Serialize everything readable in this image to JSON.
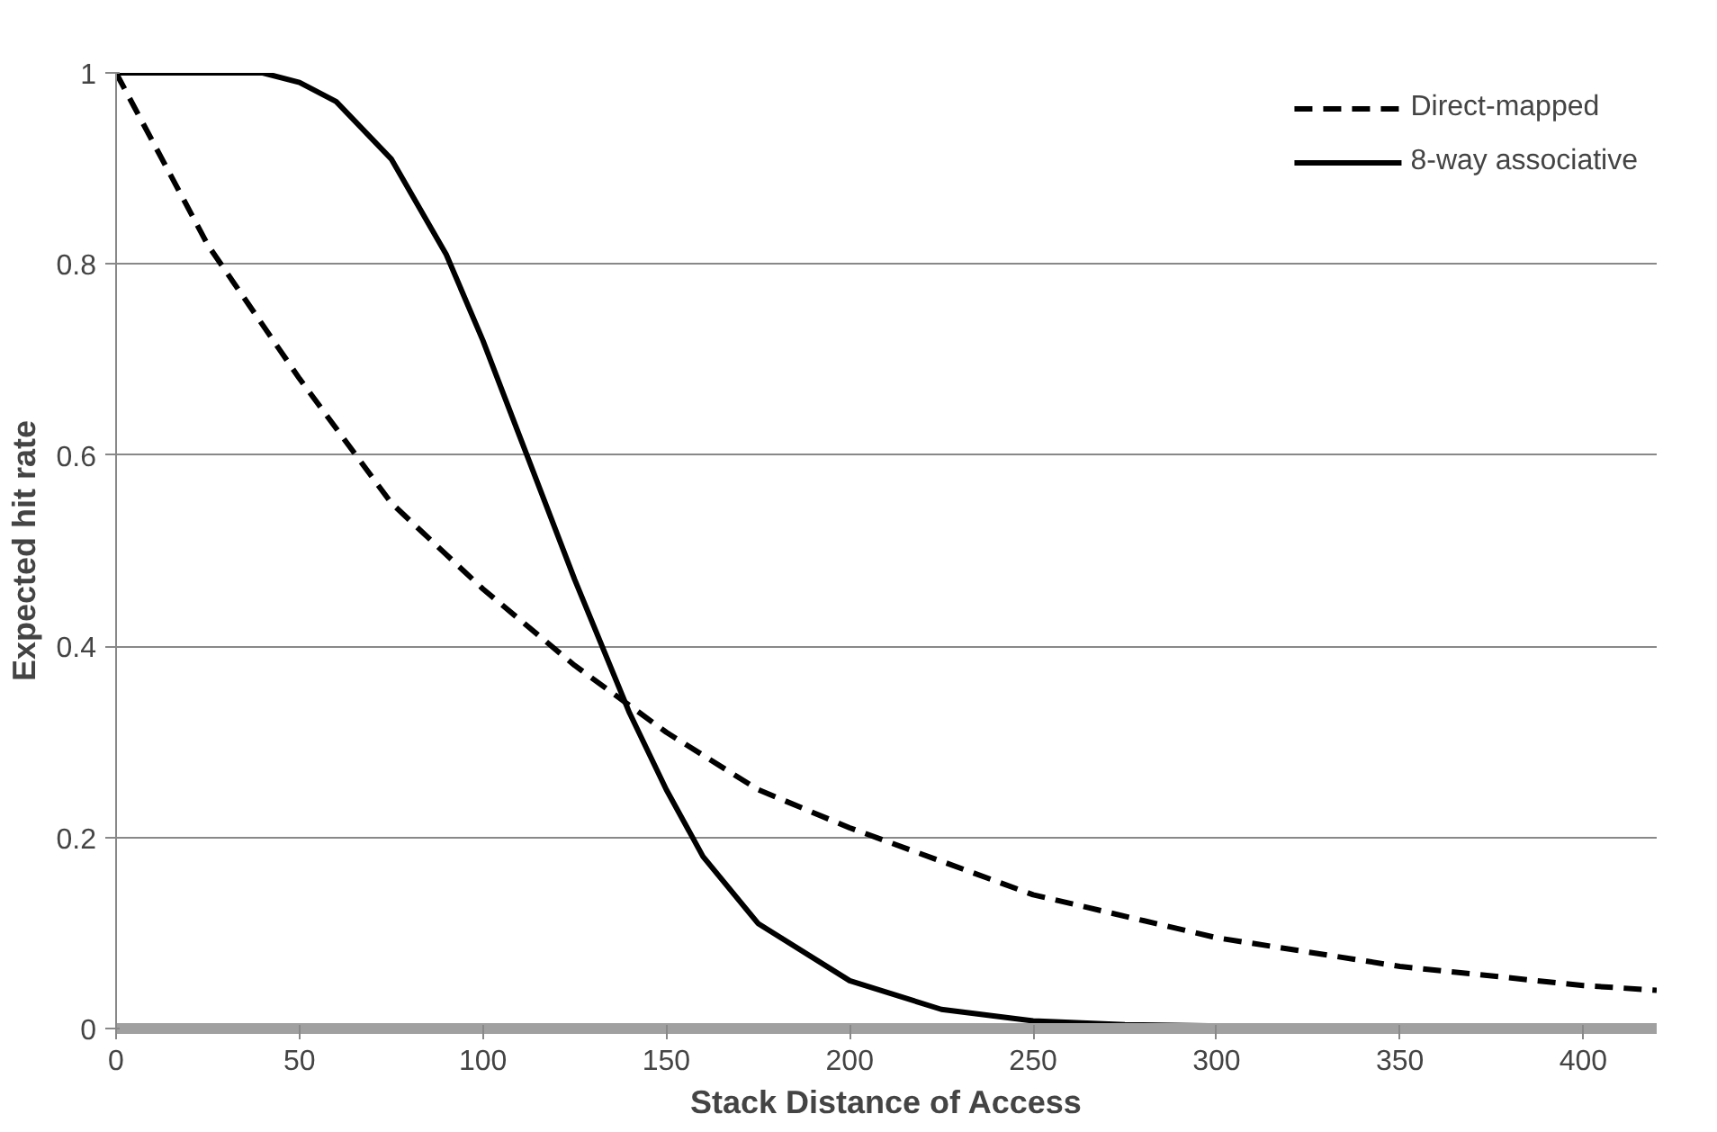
{
  "chart_data": {
    "type": "line",
    "xlabel": "Stack Distance of Access",
    "ylabel": "Expected hit rate",
    "xlim": [
      0,
      420
    ],
    "ylim": [
      0,
      1
    ],
    "xticks": [
      0,
      50,
      100,
      150,
      200,
      250,
      300,
      350,
      400
    ],
    "yticks": [
      0,
      0.2,
      0.4,
      0.6,
      0.8,
      1
    ],
    "grid": "y",
    "legend": "top right",
    "marker": "none",
    "series": [
      {
        "name": "Direct-mapped",
        "color": "#000000",
        "line_style": "dashed",
        "x": [
          0,
          25,
          50,
          75,
          100,
          125,
          150,
          175,
          200,
          250,
          300,
          350,
          400,
          420
        ],
        "values": [
          1,
          0.82,
          0.68,
          0.55,
          0.46,
          0.38,
          0.31,
          0.25,
          0.21,
          0.14,
          0.095,
          0.065,
          0.045,
          0.04
        ]
      },
      {
        "name": "8-way associative",
        "color": "#000000",
        "line_style": "solid",
        "x": [
          0,
          25,
          40,
          50,
          60,
          75,
          90,
          100,
          110,
          125,
          140,
          150,
          160,
          175,
          200,
          225,
          250,
          275,
          350,
          420
        ],
        "values": [
          1,
          1,
          1,
          0.99,
          0.97,
          0.91,
          0.81,
          0.72,
          0.62,
          0.47,
          0.33,
          0.25,
          0.18,
          0.11,
          0.05,
          0.02,
          0.008,
          0.004,
          0,
          0
        ]
      }
    ]
  }
}
